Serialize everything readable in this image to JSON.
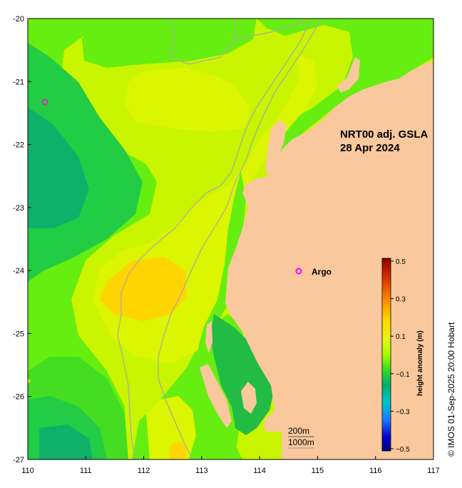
{
  "map": {
    "title_line1": "NRT00 adj. GSLA",
    "title_line2": "28 Apr 2024",
    "lon_ticks": [
      "110",
      "111",
      "112",
      "113",
      "114",
      "115",
      "116",
      "117"
    ],
    "lat_ticks": [
      "-20",
      "-21",
      "-22",
      "-23",
      "-24",
      "-25",
      "-26",
      "-27"
    ],
    "lon_range": [
      110,
      117
    ],
    "lat_range": [
      -27,
      -20
    ],
    "argo_label": "Argo",
    "contour_label_200": "200m",
    "contour_label_1000": "1000m",
    "copyright": "© IMOS 01-Sep-2025 20:00 Hobart"
  },
  "colorbar": {
    "title": "height anomaly (m)",
    "tick_labels": [
      "0.5",
      "0.3",
      "0.1",
      "−0.1",
      "−0.3",
      "−0.5"
    ],
    "range": [
      -0.5,
      0.5
    ]
  },
  "colors": {
    "land": "#f9c89c",
    "marker": "#ff00ff",
    "isobath": "#a9a9a9"
  }
}
